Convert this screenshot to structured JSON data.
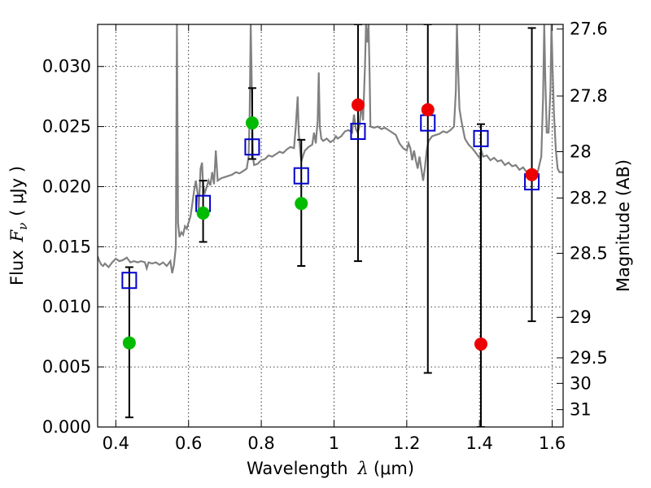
{
  "chart_data": {
    "type": "scatter",
    "xlabel": {
      "text": "Wavelength",
      "symbol": "λ",
      "unit": "(μm)"
    },
    "ylabel": {
      "text": "Flux",
      "symbol": "F",
      "subscript": "ν",
      "unit": "( μJy )"
    },
    "y2label": "Magnitude (AB)",
    "xlim": [
      0.35,
      1.63
    ],
    "ylim": [
      0.0,
      0.0335
    ],
    "grid": true,
    "x_ticks": [
      {
        "value": 0.4,
        "label": "0.4"
      },
      {
        "value": 0.6,
        "label": "0.6"
      },
      {
        "value": 0.8,
        "label": "0.8"
      },
      {
        "value": 1.0,
        "label": "1"
      },
      {
        "value": 1.2,
        "label": "1.2"
      },
      {
        "value": 1.4,
        "label": "1.4"
      },
      {
        "value": 1.6,
        "label": "1.6"
      }
    ],
    "y_ticks": [
      {
        "value": 0.0,
        "label": "0.000"
      },
      {
        "value": 0.005,
        "label": "0.005"
      },
      {
        "value": 0.01,
        "label": "0.010"
      },
      {
        "value": 0.015,
        "label": "0.015"
      },
      {
        "value": 0.02,
        "label": "0.020"
      },
      {
        "value": 0.025,
        "label": "0.025"
      },
      {
        "value": 0.03,
        "label": "0.030"
      }
    ],
    "y2_ticks": [
      {
        "label": "27.6",
        "mag": 27.6
      },
      {
        "label": "27.8",
        "mag": 27.8
      },
      {
        "label": "28",
        "mag": 28.0
      },
      {
        "label": "28.2",
        "mag": 28.2
      },
      {
        "label": "28.5",
        "mag": 28.5
      },
      {
        "label": "29",
        "mag": 29.0
      },
      {
        "label": "29.5",
        "mag": 29.5
      },
      {
        "label": "30",
        "mag": 30.0
      },
      {
        "label": "31",
        "mag": 31.0
      }
    ],
    "sed_model": {
      "color": "#808080",
      "points": [
        [
          0.35,
          0.0142
        ],
        [
          0.355,
          0.0138
        ],
        [
          0.36,
          0.0135
        ],
        [
          0.365,
          0.0134
        ],
        [
          0.37,
          0.0136
        ],
        [
          0.38,
          0.0133
        ],
        [
          0.39,
          0.0137
        ],
        [
          0.4,
          0.014
        ],
        [
          0.41,
          0.0138
        ],
        [
          0.42,
          0.0139
        ],
        [
          0.43,
          0.0141
        ],
        [
          0.44,
          0.0137
        ],
        [
          0.45,
          0.0138
        ],
        [
          0.46,
          0.0137
        ],
        [
          0.47,
          0.0138
        ],
        [
          0.48,
          0.0137
        ],
        [
          0.485,
          0.0132
        ],
        [
          0.49,
          0.0137
        ],
        [
          0.5,
          0.0136
        ],
        [
          0.51,
          0.0137
        ],
        [
          0.52,
          0.0135
        ],
        [
          0.53,
          0.0137
        ],
        [
          0.54,
          0.0134
        ],
        [
          0.55,
          0.0138
        ],
        [
          0.555,
          0.0128
        ],
        [
          0.56,
          0.0135
        ],
        [
          0.565,
          0.015
        ],
        [
          0.568,
          0.0335
        ],
        [
          0.571,
          0.017
        ],
        [
          0.575,
          0.0158
        ],
        [
          0.58,
          0.0162
        ],
        [
          0.585,
          0.016
        ],
        [
          0.59,
          0.0167
        ],
        [
          0.595,
          0.0165
        ],
        [
          0.6,
          0.017
        ],
        [
          0.605,
          0.0175
        ],
        [
          0.61,
          0.0185
        ],
        [
          0.615,
          0.0196
        ],
        [
          0.62,
          0.0205
        ],
        [
          0.625,
          0.0194
        ],
        [
          0.628,
          0.018
        ],
        [
          0.633,
          0.0215
        ],
        [
          0.637,
          0.022
        ],
        [
          0.64,
          0.02
        ],
        [
          0.645,
          0.0195
        ],
        [
          0.65,
          0.02
        ],
        [
          0.655,
          0.0205
        ],
        [
          0.66,
          0.0201
        ],
        [
          0.665,
          0.0212
        ],
        [
          0.67,
          0.0202
        ],
        [
          0.675,
          0.023
        ],
        [
          0.68,
          0.0205
        ],
        [
          0.69,
          0.0207
        ],
        [
          0.7,
          0.0208
        ],
        [
          0.71,
          0.0209
        ],
        [
          0.72,
          0.021
        ],
        [
          0.73,
          0.0212
        ],
        [
          0.74,
          0.0211
        ],
        [
          0.75,
          0.0213
        ],
        [
          0.76,
          0.0215
        ],
        [
          0.765,
          0.0225
        ],
        [
          0.768,
          0.026
        ],
        [
          0.771,
          0.0335
        ],
        [
          0.774,
          0.028
        ],
        [
          0.777,
          0.0225
        ],
        [
          0.78,
          0.0218
        ],
        [
          0.79,
          0.0219
        ],
        [
          0.8,
          0.0222
        ],
        [
          0.81,
          0.0223
        ],
        [
          0.82,
          0.0226
        ],
        [
          0.83,
          0.0225
        ],
        [
          0.84,
          0.0227
        ],
        [
          0.85,
          0.0229
        ],
        [
          0.86,
          0.0228
        ],
        [
          0.87,
          0.0231
        ],
        [
          0.88,
          0.0233
        ],
        [
          0.89,
          0.0232
        ],
        [
          0.895,
          0.025
        ],
        [
          0.9,
          0.0275
        ],
        [
          0.903,
          0.0245
        ],
        [
          0.907,
          0.023
        ],
        [
          0.91,
          0.0221
        ],
        [
          0.915,
          0.0226
        ],
        [
          0.92,
          0.023
        ],
        [
          0.93,
          0.0233
        ],
        [
          0.94,
          0.0235
        ],
        [
          0.945,
          0.0245
        ],
        [
          0.95,
          0.0236
        ],
        [
          0.955,
          0.0255
        ],
        [
          0.958,
          0.0295
        ],
        [
          0.961,
          0.025
        ],
        [
          0.965,
          0.024
        ],
        [
          0.97,
          0.0238
        ],
        [
          0.98,
          0.024
        ],
        [
          0.99,
          0.0237
        ],
        [
          1.0,
          0.0239
        ],
        [
          1.005,
          0.0242
        ],
        [
          1.01,
          0.024
        ],
        [
          1.02,
          0.0242
        ],
        [
          1.03,
          0.0246
        ],
        [
          1.04,
          0.0247
        ],
        [
          1.05,
          0.0245
        ],
        [
          1.055,
          0.026
        ],
        [
          1.06,
          0.0248
        ],
        [
          1.065,
          0.0245
        ],
        [
          1.07,
          0.025
        ],
        [
          1.075,
          0.027
        ],
        [
          1.08,
          0.0255
        ],
        [
          1.085,
          0.03
        ],
        [
          1.088,
          0.0335
        ],
        [
          1.091,
          0.032
        ],
        [
          1.095,
          0.0335
        ],
        [
          1.098,
          0.029
        ],
        [
          1.1,
          0.025
        ],
        [
          1.11,
          0.0249
        ],
        [
          1.12,
          0.025
        ],
        [
          1.13,
          0.0248
        ],
        [
          1.14,
          0.0249
        ],
        [
          1.15,
          0.0247
        ],
        [
          1.16,
          0.0245
        ],
        [
          1.17,
          0.0243
        ],
        [
          1.18,
          0.0236
        ],
        [
          1.19,
          0.0232
        ],
        [
          1.2,
          0.023
        ],
        [
          1.205,
          0.0236
        ],
        [
          1.21,
          0.0232
        ],
        [
          1.215,
          0.0222
        ],
        [
          1.22,
          0.023
        ],
        [
          1.225,
          0.0222
        ],
        [
          1.23,
          0.0215
        ],
        [
          1.235,
          0.0225
        ],
        [
          1.24,
          0.0215
        ],
        [
          1.245,
          0.0205
        ],
        [
          1.25,
          0.0216
        ],
        [
          1.255,
          0.023
        ],
        [
          1.26,
          0.0238
        ],
        [
          1.265,
          0.024
        ],
        [
          1.27,
          0.0242
        ],
        [
          1.28,
          0.0243
        ],
        [
          1.29,
          0.0244
        ],
        [
          1.3,
          0.0246
        ],
        [
          1.31,
          0.0245
        ],
        [
          1.32,
          0.0247
        ],
        [
          1.33,
          0.025
        ],
        [
          1.335,
          0.028
        ],
        [
          1.338,
          0.0335
        ],
        [
          1.341,
          0.03
        ],
        [
          1.345,
          0.0265
        ],
        [
          1.35,
          0.0255
        ],
        [
          1.36,
          0.024
        ],
        [
          1.37,
          0.0235
        ],
        [
          1.38,
          0.0232
        ],
        [
          1.39,
          0.0228
        ],
        [
          1.4,
          0.0224
        ],
        [
          1.405,
          0.023
        ],
        [
          1.41,
          0.0225
        ],
        [
          1.42,
          0.0226
        ],
        [
          1.43,
          0.0222
        ],
        [
          1.44,
          0.0224
        ],
        [
          1.45,
          0.0221
        ],
        [
          1.46,
          0.0222
        ],
        [
          1.47,
          0.0218
        ],
        [
          1.48,
          0.022
        ],
        [
          1.49,
          0.0217
        ],
        [
          1.5,
          0.0218
        ],
        [
          1.51,
          0.0214
        ],
        [
          1.52,
          0.0216
        ],
        [
          1.53,
          0.0212
        ],
        [
          1.54,
          0.0213
        ],
        [
          1.55,
          0.021
        ],
        [
          1.56,
          0.0212
        ],
        [
          1.57,
          0.0225
        ],
        [
          1.575,
          0.0275
        ],
        [
          1.578,
          0.0335
        ],
        [
          1.581,
          0.029
        ],
        [
          1.585,
          0.0245
        ],
        [
          1.59,
          0.0245
        ],
        [
          1.595,
          0.028
        ],
        [
          1.598,
          0.0335
        ],
        [
          1.601,
          0.03
        ],
        [
          1.605,
          0.026
        ],
        [
          1.61,
          0.023
        ],
        [
          1.615,
          0.0215
        ],
        [
          1.62,
          0.0212
        ],
        [
          1.63,
          0.0212
        ]
      ]
    },
    "model_photometry": {
      "marker": "open-square",
      "color": "#0000cc",
      "points": [
        {
          "x": 0.437,
          "y": 0.0122
        },
        {
          "x": 0.64,
          "y": 0.0186
        },
        {
          "x": 0.775,
          "y": 0.0233
        },
        {
          "x": 0.91,
          "y": 0.0209
        },
        {
          "x": 1.066,
          "y": 0.0246
        },
        {
          "x": 1.258,
          "y": 0.0253
        },
        {
          "x": 1.404,
          "y": 0.024
        },
        {
          "x": 1.544,
          "y": 0.0204
        }
      ]
    },
    "observed_detections": {
      "marker": "filled-circle",
      "color": "#00bb00",
      "points": [
        {
          "x": 0.437,
          "y": 0.007,
          "err_lo": 0.0008,
          "err_hi": 0.0133
        },
        {
          "x": 0.64,
          "y": 0.0178,
          "err_lo": 0.0154,
          "err_hi": 0.0205
        },
        {
          "x": 0.775,
          "y": 0.0253,
          "err_lo": 0.0223,
          "err_hi": 0.0282
        },
        {
          "x": 0.91,
          "y": 0.0186,
          "err_lo": 0.0134,
          "err_hi": 0.0239
        }
      ]
    },
    "observed_other": {
      "marker": "filled-circle",
      "color": "#ee0000",
      "points": [
        {
          "x": 1.066,
          "y": 0.0268,
          "err_lo": 0.0138,
          "err_hi": 0.0335
        },
        {
          "x": 1.258,
          "y": 0.0264,
          "err_lo": 0.0045,
          "err_hi": 0.0335
        },
        {
          "x": 1.404,
          "y": 0.0069,
          "err_lo": 0.0,
          "err_hi": 0.0252
        },
        {
          "x": 1.544,
          "y": 0.021,
          "err_lo": 0.0088,
          "err_hi": 0.0332
        }
      ]
    }
  }
}
